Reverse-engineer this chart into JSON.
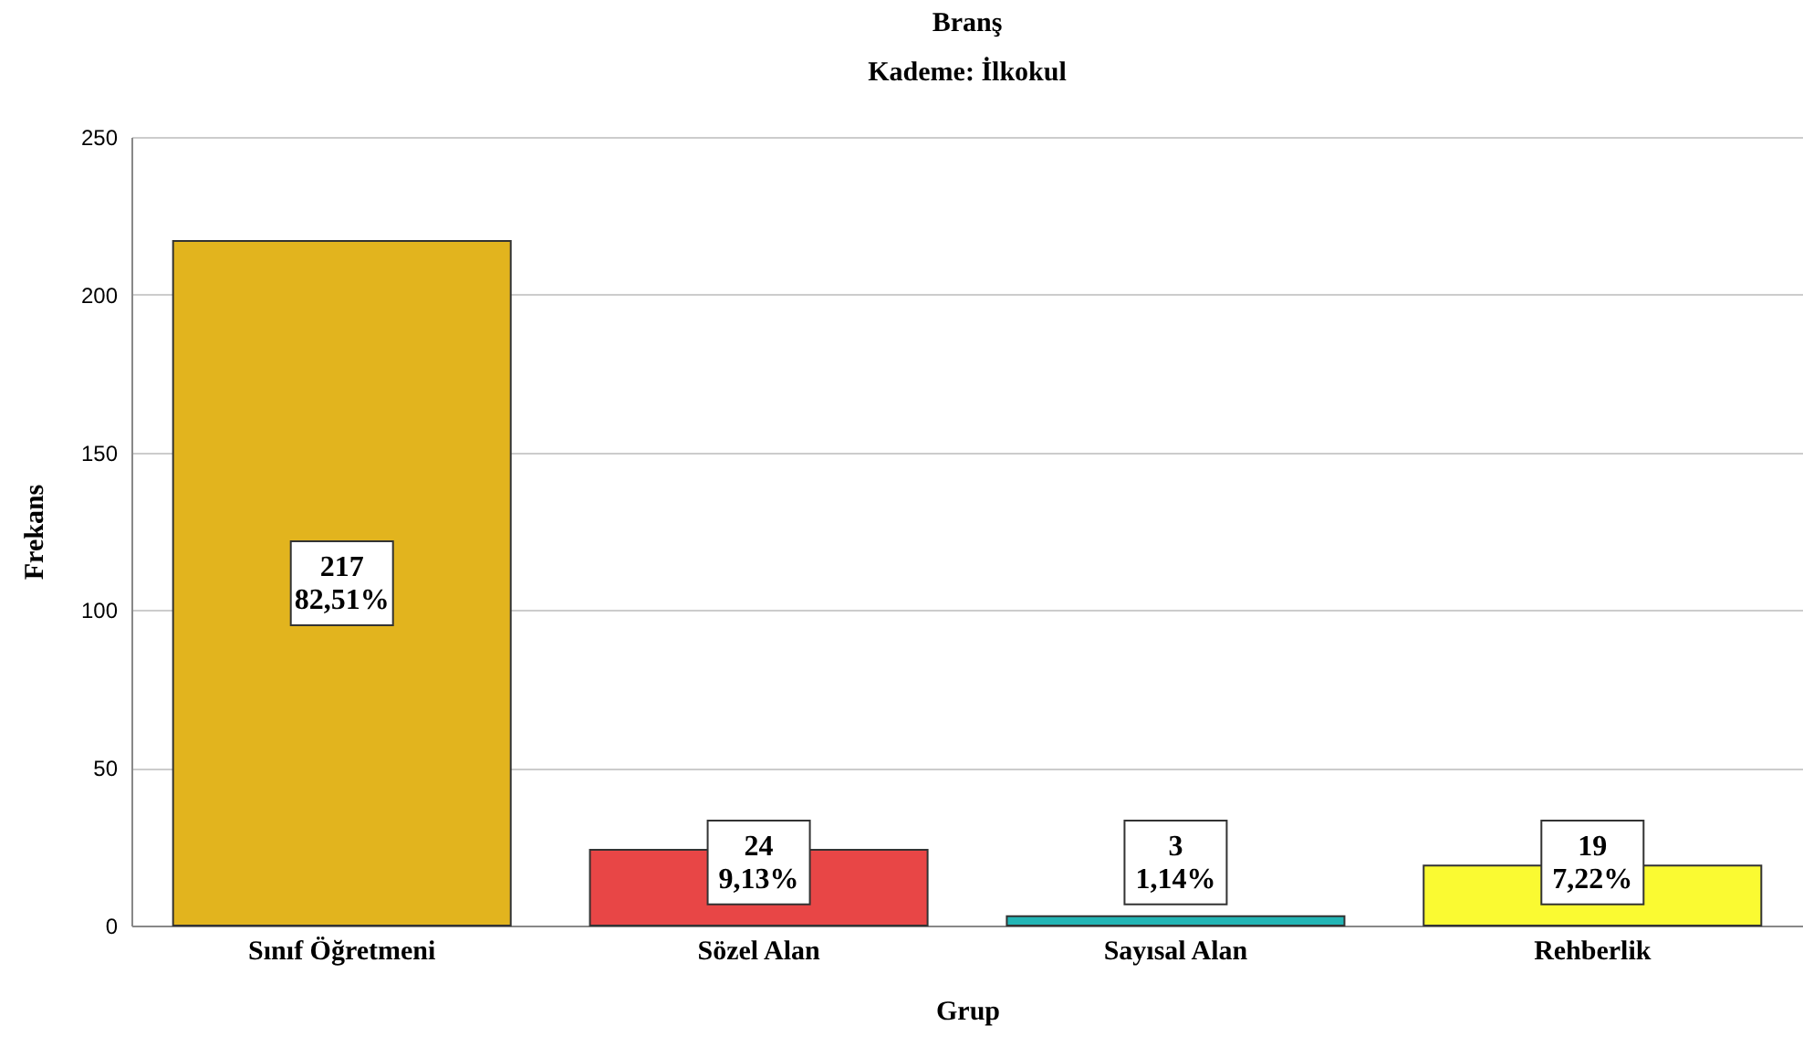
{
  "chart_data": {
    "type": "bar",
    "title": "Branş",
    "subtitle": "Kademe: İlkokul",
    "xlabel": "Grup",
    "ylabel": "Frekans",
    "categories": [
      "Sınıf Öğretmeni",
      "Sözel Alan",
      "Sayısal Alan",
      "Rehberlik"
    ],
    "values": [
      217,
      24,
      3,
      19
    ],
    "colors": [
      "#e2b41e",
      "#e84646",
      "#22b5b5",
      "#fafa32"
    ],
    "value_labels": [
      "217\n82,51%",
      "24\n9,13%",
      "3\n1,14%",
      "19\n7,22%"
    ],
    "ylim": [
      0,
      250
    ],
    "yticks": [
      0,
      50,
      100,
      150,
      200,
      250
    ],
    "grid": "y"
  }
}
